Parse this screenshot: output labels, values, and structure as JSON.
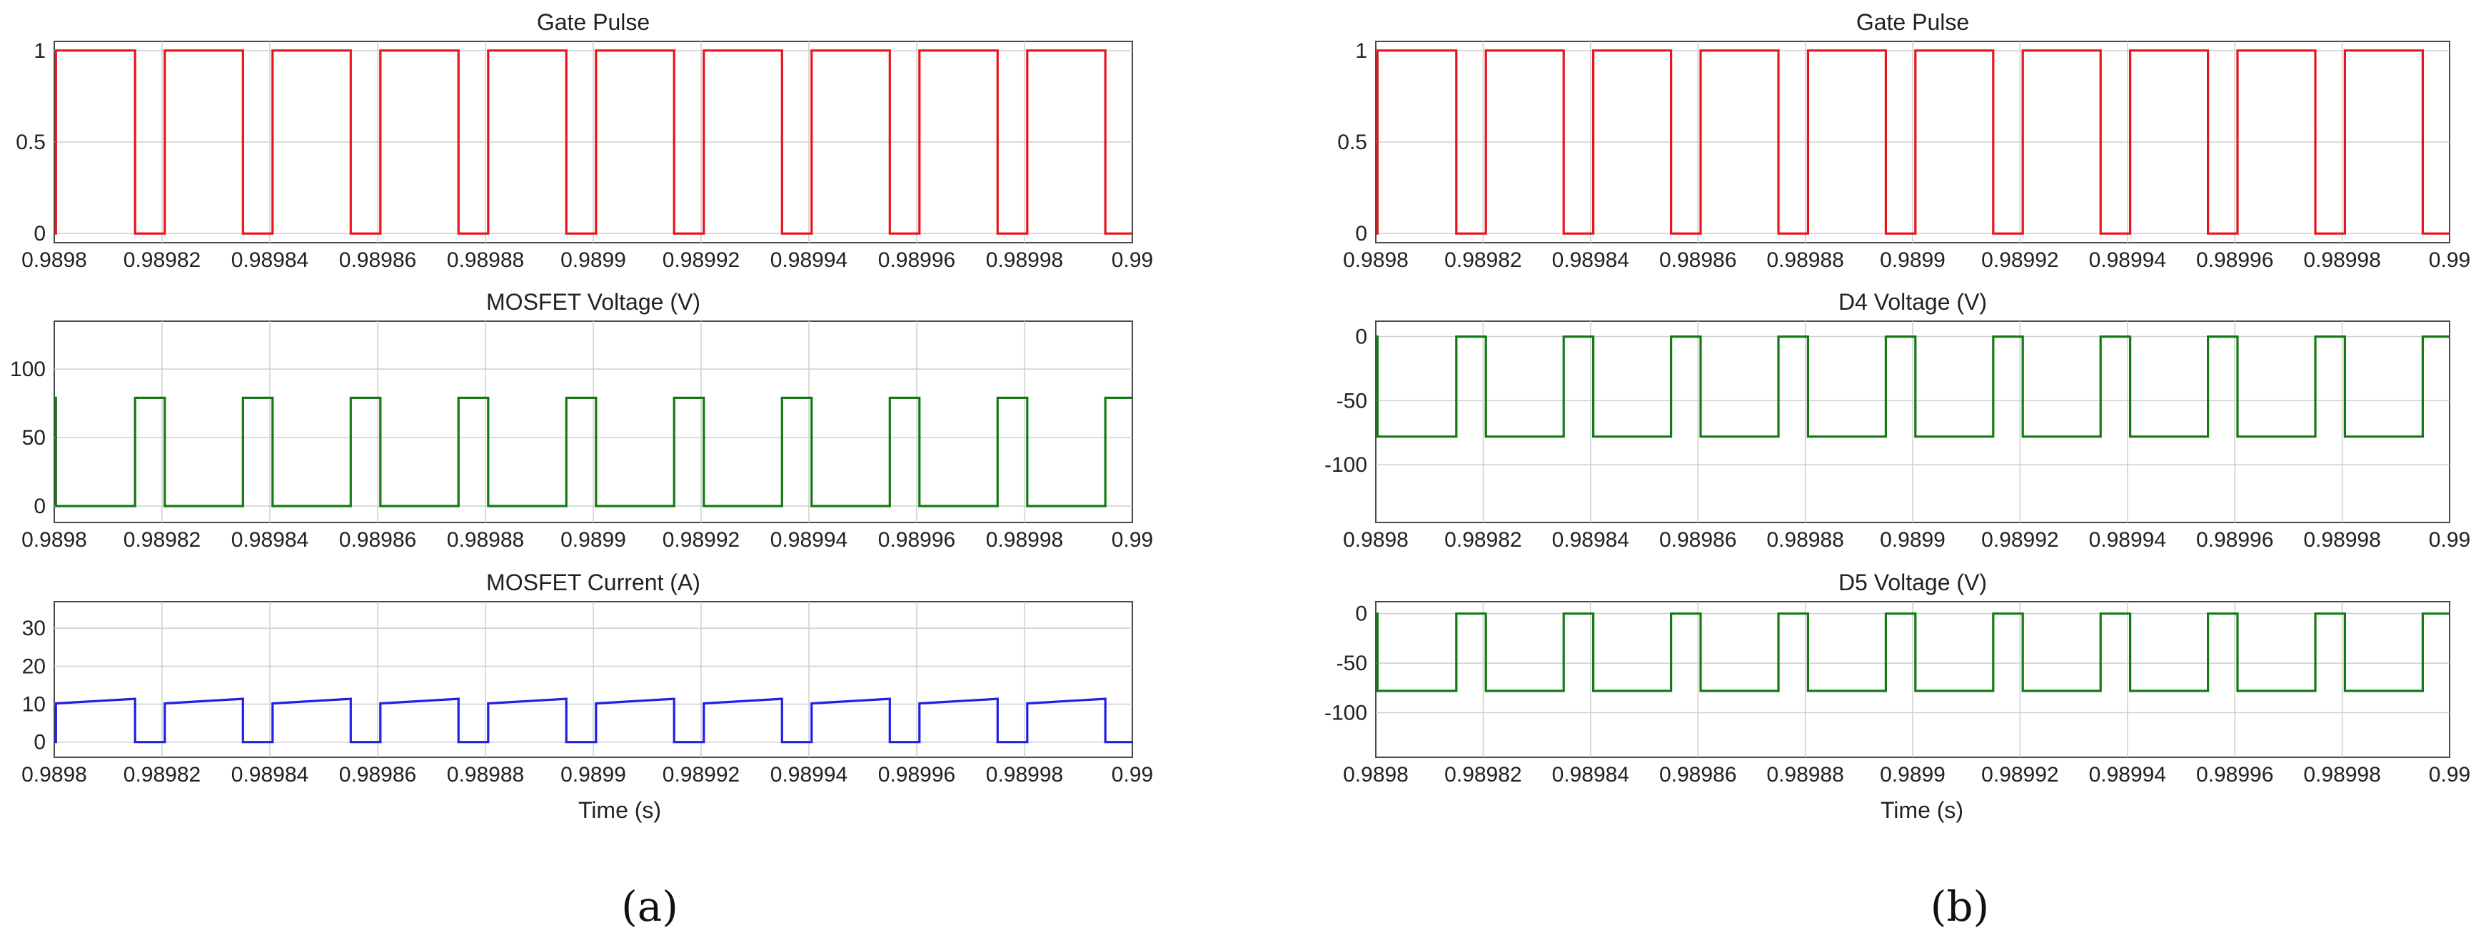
{
  "colors": {
    "red": "#e8141c",
    "green": "#137a13",
    "blue": "#1f1fe6",
    "grid": "#cfcfcf",
    "axis": "#4a4a4a"
  },
  "panels": [
    {
      "label": "(a)",
      "xlabel": "Time (s)"
    },
    {
      "label": "(b)",
      "xlabel": "Time (s)"
    }
  ],
  "chart_data": [
    {
      "type": "line",
      "title": "Gate Pulse",
      "xlabel": "",
      "ylabel": "",
      "xlim": [
        0.9898,
        0.99
      ],
      "ylim": [
        -0.05,
        1.05
      ],
      "xticks": [
        "0.9898",
        "0.98982",
        "0.98984",
        "0.98986",
        "0.98988",
        "0.9899",
        "0.98992",
        "0.98994",
        "0.98996",
        "0.98998",
        "0.99"
      ],
      "yticks": [
        0,
        0.5,
        1
      ],
      "ytick_labels": [
        "0",
        "0.5",
        "1"
      ],
      "grid": true,
      "series": [
        {
          "color": "red",
          "waveform": "pulse",
          "period": 2e-05,
          "first_edge": 0.989815,
          "active_value": 0,
          "rest_value": 1,
          "active_duration": 5.5e-06
        }
      ]
    },
    {
      "type": "line",
      "title": "MOSFET Voltage  (V)",
      "xlabel": "",
      "ylabel": "",
      "xlim": [
        0.9898,
        0.99
      ],
      "ylim": [
        -12,
        135
      ],
      "xticks": [
        "0.9898",
        "0.98982",
        "0.98984",
        "0.98986",
        "0.98988",
        "0.9899",
        "0.98992",
        "0.98994",
        "0.98996",
        "0.98998",
        "0.99"
      ],
      "yticks": [
        0,
        50,
        100
      ],
      "ytick_labels": [
        "0",
        "50",
        "100"
      ],
      "grid": true,
      "series": [
        {
          "color": "green",
          "waveform": "pulse",
          "period": 2e-05,
          "first_edge": 0.989815,
          "active_value": 79,
          "rest_value": 0,
          "active_duration": 5.5e-06
        }
      ]
    },
    {
      "type": "line",
      "title": "MOSFET Current (A)",
      "xlabel": "Time (s)",
      "ylabel": "",
      "xlim": [
        0.9898,
        0.99
      ],
      "ylim": [
        -4,
        37
      ],
      "xticks": [
        "0.9898",
        "0.98982",
        "0.98984",
        "0.98986",
        "0.98988",
        "0.9899",
        "0.98992",
        "0.98994",
        "0.98996",
        "0.98998",
        "0.99"
      ],
      "yticks": [
        0,
        10,
        20,
        30
      ],
      "ytick_labels": [
        "0",
        "10",
        "20",
        "30"
      ],
      "grid": true,
      "series": [
        {
          "color": "blue",
          "waveform": "ramp",
          "period": 2e-05,
          "first_edge": 0.989815,
          "active_value": 0,
          "ramp_start": 10.2,
          "ramp_end": 11.4,
          "active_duration": 5.5e-06
        }
      ]
    },
    {
      "type": "line",
      "title": "Gate Pulse",
      "xlabel": "",
      "ylabel": "",
      "xlim": [
        0.9898,
        0.99
      ],
      "ylim": [
        -0.05,
        1.05
      ],
      "xticks": [
        "0.9898",
        "0.98982",
        "0.98984",
        "0.98986",
        "0.98988",
        "0.9899",
        "0.98992",
        "0.98994",
        "0.98996",
        "0.98998",
        "0.99"
      ],
      "yticks": [
        0,
        0.5,
        1
      ],
      "ytick_labels": [
        "0",
        "0.5",
        "1"
      ],
      "grid": true,
      "series": [
        {
          "color": "red",
          "waveform": "pulse",
          "period": 2e-05,
          "first_edge": 0.989815,
          "active_value": 0,
          "rest_value": 1,
          "active_duration": 5.5e-06
        }
      ]
    },
    {
      "type": "line",
      "title": "D4 Voltage (V)",
      "xlabel": "",
      "ylabel": "",
      "xlim": [
        0.9898,
        0.99
      ],
      "ylim": [
        -145,
        12
      ],
      "xticks": [
        "0.9898",
        "0.98982",
        "0.98984",
        "0.98986",
        "0.98988",
        "0.9899",
        "0.98992",
        "0.98994",
        "0.98996",
        "0.98998",
        "0.99"
      ],
      "yticks": [
        -100,
        -50,
        0
      ],
      "ytick_labels": [
        "-100",
        "-50",
        "0"
      ],
      "grid": true,
      "series": [
        {
          "color": "green",
          "waveform": "pulse",
          "period": 2e-05,
          "first_edge": 0.989815,
          "active_value": 0,
          "rest_value": -78,
          "active_duration": 5.5e-06
        }
      ]
    },
    {
      "type": "line",
      "title": "D5 Voltage (V)",
      "xlabel": "Time (s)",
      "ylabel": "",
      "xlim": [
        0.9898,
        0.99
      ],
      "ylim": [
        -145,
        12
      ],
      "xticks": [
        "0.9898",
        "0.98982",
        "0.98984",
        "0.98986",
        "0.98988",
        "0.9899",
        "0.98992",
        "0.98994",
        "0.98996",
        "0.98998",
        "0.99"
      ],
      "yticks": [
        -100,
        -50,
        0
      ],
      "ytick_labels": [
        "-100",
        "-50",
        "0"
      ],
      "grid": true,
      "series": [
        {
          "color": "green",
          "waveform": "pulse",
          "period": 2e-05,
          "first_edge": 0.989815,
          "active_value": 0,
          "rest_value": -78,
          "active_duration": 5.5e-06
        }
      ]
    }
  ]
}
